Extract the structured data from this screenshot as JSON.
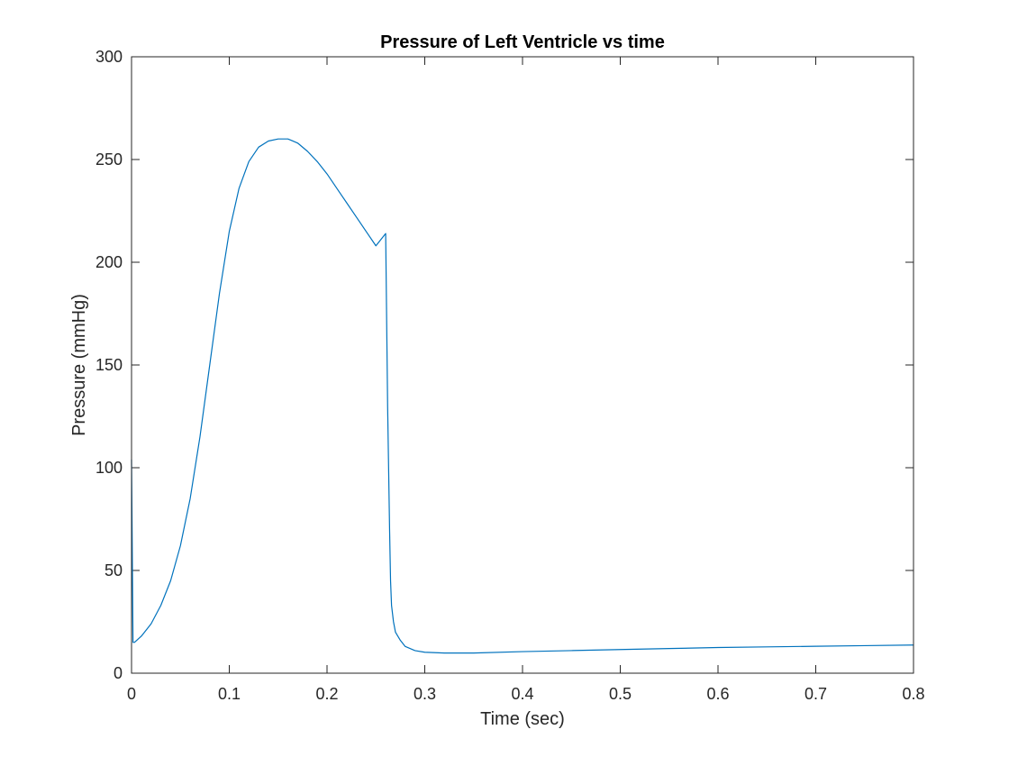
{
  "chart_data": {
    "type": "line",
    "title": "Pressure of Left Ventricle vs time",
    "xlabel": "Time (sec)",
    "ylabel": "Pressure (mmHg)",
    "xlim": [
      0,
      0.8
    ],
    "ylim": [
      0,
      300
    ],
    "xticks": [
      0,
      0.1,
      0.2,
      0.3,
      0.4,
      0.5,
      0.6,
      0.7,
      0.8
    ],
    "xtick_labels": [
      "0",
      "0.1",
      "0.2",
      "0.3",
      "0.4",
      "0.5",
      "0.6",
      "0.7",
      "0.8"
    ],
    "yticks": [
      0,
      50,
      100,
      150,
      200,
      250,
      300
    ],
    "ytick_labels": [
      "0",
      "50",
      "100",
      "150",
      "200",
      "250",
      "300"
    ],
    "grid": false,
    "box": true,
    "line_color": "#0072BD",
    "series": [
      {
        "x": [
          0,
          0.0015,
          0.003,
          0.01,
          0.02,
          0.03,
          0.04,
          0.05,
          0.06,
          0.07,
          0.08,
          0.09,
          0.1,
          0.11,
          0.12,
          0.13,
          0.14,
          0.15,
          0.16,
          0.165,
          0.17,
          0.18,
          0.19,
          0.2,
          0.21,
          0.22,
          0.23,
          0.24,
          0.25,
          0.26,
          0.262,
          0.264,
          0.265,
          0.266,
          0.268,
          0.27,
          0.275,
          0.28,
          0.29,
          0.3,
          0.32,
          0.35,
          0.4,
          0.45,
          0.5,
          0.55,
          0.6,
          0.65,
          0.7,
          0.75,
          0.8
        ],
        "y": [
          104,
          15,
          15,
          18,
          24,
          33,
          45,
          62,
          85,
          115,
          150,
          185,
          215,
          236,
          249,
          256,
          259,
          260,
          260,
          259,
          258,
          254,
          249,
          243,
          236,
          229,
          222,
          215,
          208,
          214,
          130,
          70,
          45,
          33,
          25,
          20,
          16,
          13,
          11,
          10.2,
          9.8,
          9.8,
          10.5,
          11,
          11.5,
          12,
          12.5,
          12.8,
          13.1,
          13.4,
          13.7
        ]
      }
    ]
  }
}
